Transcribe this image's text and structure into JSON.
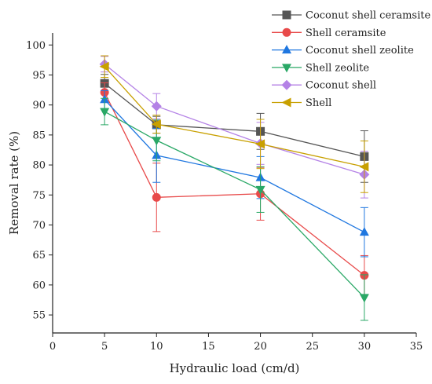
{
  "chart_data": {
    "type": "line",
    "title": "",
    "xlabel": "Hydraulic load (cm/d)",
    "ylabel": "Removal rate (%)",
    "xlim": [
      0,
      35
    ],
    "ylim": [
      52,
      102
    ],
    "x_ticks": [
      0,
      5,
      10,
      15,
      20,
      25,
      30,
      35
    ],
    "y_ticks": [
      55,
      60,
      65,
      70,
      75,
      80,
      85,
      90,
      95,
      100
    ],
    "grid": false,
    "legend_position": "top-right",
    "x": [
      5,
      10,
      20,
      30
    ],
    "series": [
      {
        "name": "Coconut shell ceramsite",
        "color": "#555555",
        "marker": "square",
        "values": [
          93.6,
          86.7,
          85.6,
          81.4
        ],
        "errors": [
          1.5,
          1.4,
          3.0,
          4.3
        ]
      },
      {
        "name": "Shell ceramsite",
        "color": "#e84a4a",
        "marker": "circle",
        "values": [
          92.1,
          74.6,
          75.2,
          61.6
        ],
        "errors": [
          1.6,
          5.7,
          4.4,
          3.3
        ]
      },
      {
        "name": "Coconut shell zeolite",
        "color": "#1f77e0",
        "marker": "triangle-up",
        "values": [
          90.9,
          81.6,
          77.9,
          68.8
        ],
        "errors": [
          1.5,
          4.5,
          3.5,
          4.1
        ]
      },
      {
        "name": "Shell zeolite",
        "color": "#2aa866",
        "marker": "triangle-down",
        "values": [
          88.9,
          84.1,
          75.9,
          57.9
        ],
        "errors": [
          2.2,
          3.4,
          3.8,
          3.8
        ]
      },
      {
        "name": "Coconut shell",
        "color": "#b482e6",
        "marker": "diamond",
        "values": [
          96.8,
          89.8,
          83.6,
          78.4
        ],
        "errors": [
          1.3,
          2.1,
          3.5,
          3.9
        ]
      },
      {
        "name": "Shell",
        "color": "#c8a000",
        "marker": "triangle-left",
        "values": [
          96.4,
          86.8,
          83.5,
          79.7
        ],
        "errors": [
          1.8,
          1.5,
          4.1,
          4.3
        ]
      }
    ]
  }
}
